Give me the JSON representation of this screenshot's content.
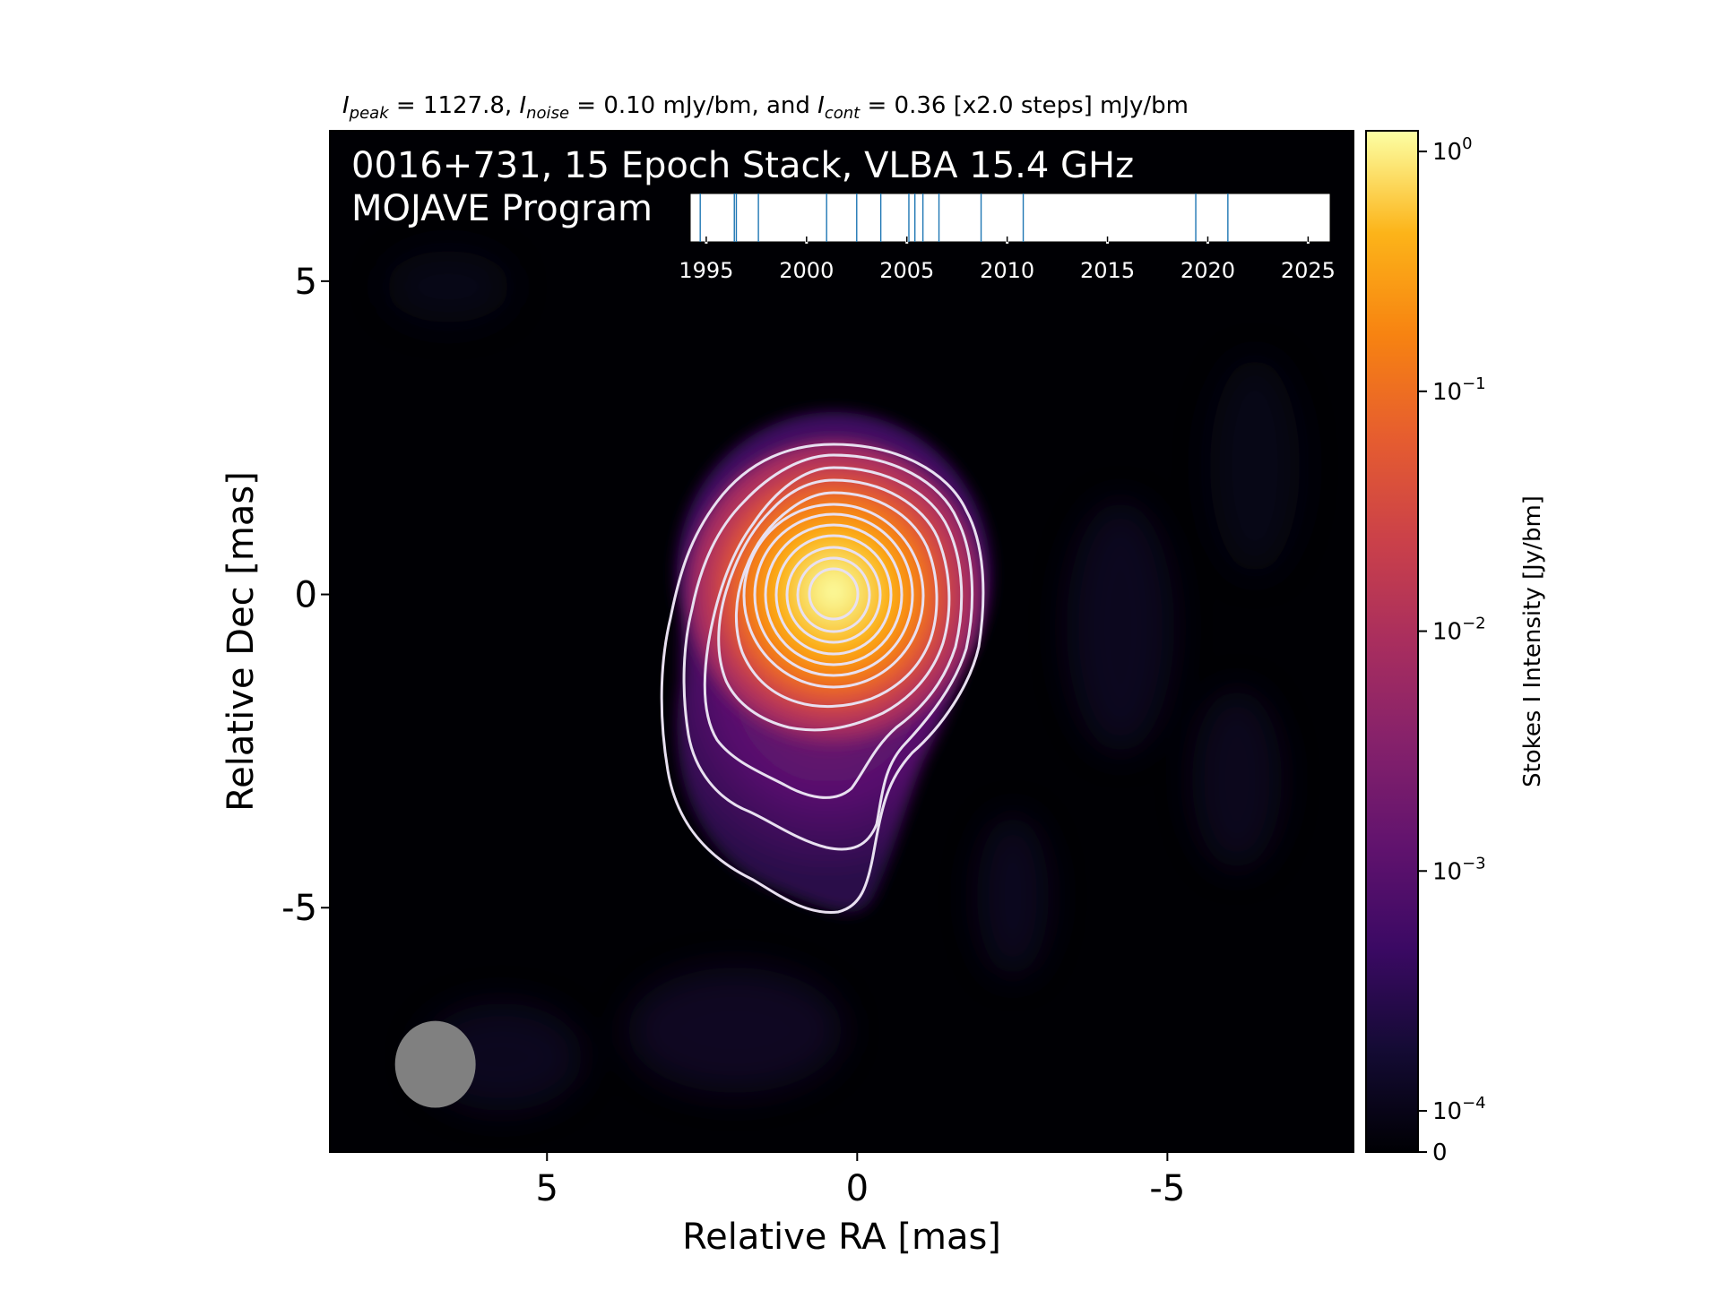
{
  "header": {
    "prefix_i": "I",
    "peak_sub": "peak",
    "peak_eq": " = 1127.8, ",
    "noise_i": "I",
    "noise_sub": "noise",
    "noise_eq": " = 0.10 mJy/bm, and ",
    "cont_i": "I",
    "cont_sub": "cont",
    "cont_eq": " = 0.36 [x2.0 steps] mJy/bm"
  },
  "overlay": {
    "line1": "0016+731, 15 Epoch Stack, VLBA 15.4 GHz",
    "line2": "MOJAVE Program"
  },
  "colors": {
    "background": "#000004",
    "contour": "#e8e0f0",
    "epoch_line": "#1f77b4",
    "beam": "#808080"
  },
  "chart_data": {
    "type": "heatmap",
    "xlabel": "Relative RA [mas]",
    "ylabel": "Relative Dec [mas]",
    "xlim": [
      8.5,
      -8.0
    ],
    "ylim": [
      -8.9,
      7.4
    ],
    "xticks": [
      5,
      0,
      -5
    ],
    "xtick_labels": [
      "5",
      "0",
      "-5"
    ],
    "yticks": [
      5,
      0,
      -5
    ],
    "ytick_labels": [
      "5",
      "0",
      "-5"
    ],
    "peak_mJy": 1127.8,
    "noise_mJy": 0.1,
    "contour_base_mJy": 0.36,
    "contour_step": 2.0,
    "contour_count": 13,
    "beam": {
      "x": 6.8,
      "y": -7.5,
      "major": 1.4,
      "minor": 1.3
    },
    "colorbar": {
      "label": "Stokes I Intensity [Jy/bm]",
      "scale": "log",
      "ticks": [
        {
          "value": 1,
          "base": "10",
          "exp": "0"
        },
        {
          "value": 0.1,
          "base": "10",
          "exp": "−1"
        },
        {
          "value": 0.01,
          "base": "10",
          "exp": "−2"
        },
        {
          "value": 0.001,
          "base": "10",
          "exp": "−3"
        },
        {
          "value": 0.0001,
          "base": "10",
          "exp": "−4"
        },
        {
          "value": 0,
          "base": "0",
          "exp": ""
        }
      ]
    },
    "epoch_timeline": {
      "xlim": [
        1994.2,
        2026.1
      ],
      "ticks": [
        1995,
        2000,
        2005,
        2010,
        2015,
        2020,
        2025
      ],
      "tick_labels": [
        "1995",
        "2000",
        "2005",
        "2010",
        "2015",
        "2020",
        "2025"
      ],
      "epochs": [
        1994.7,
        1996.4,
        1996.5,
        1997.6,
        2001.0,
        2002.5,
        2003.7,
        2005.1,
        2005.4,
        2005.8,
        2006.6,
        2008.7,
        2010.8,
        2019.4,
        2021.0
      ]
    }
  }
}
